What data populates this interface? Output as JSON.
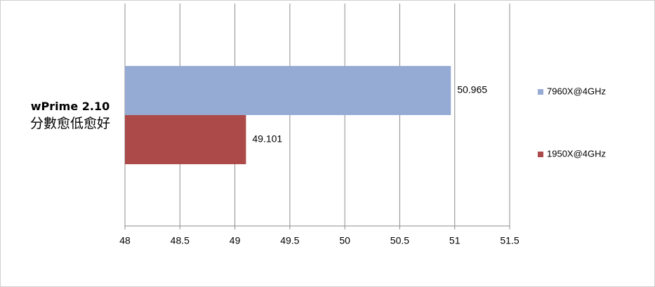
{
  "chart_data": {
    "type": "hbar",
    "categories": [
      "wPrime 2.10\n分數愈低愈好"
    ],
    "series": [
      {
        "name": "7960X@4GHz",
        "color": "#95abd4",
        "values": [
          50.965
        ]
      },
      {
        "name": "1950X@4GHz",
        "color": "#ab4a48",
        "values": [
          49.101
        ]
      }
    ],
    "xlim": [
      48,
      51.5
    ],
    "xticks": [
      48,
      48.5,
      49,
      49.5,
      50,
      50.5,
      51,
      51.5
    ],
    "grid": true,
    "legend": "right"
  }
}
